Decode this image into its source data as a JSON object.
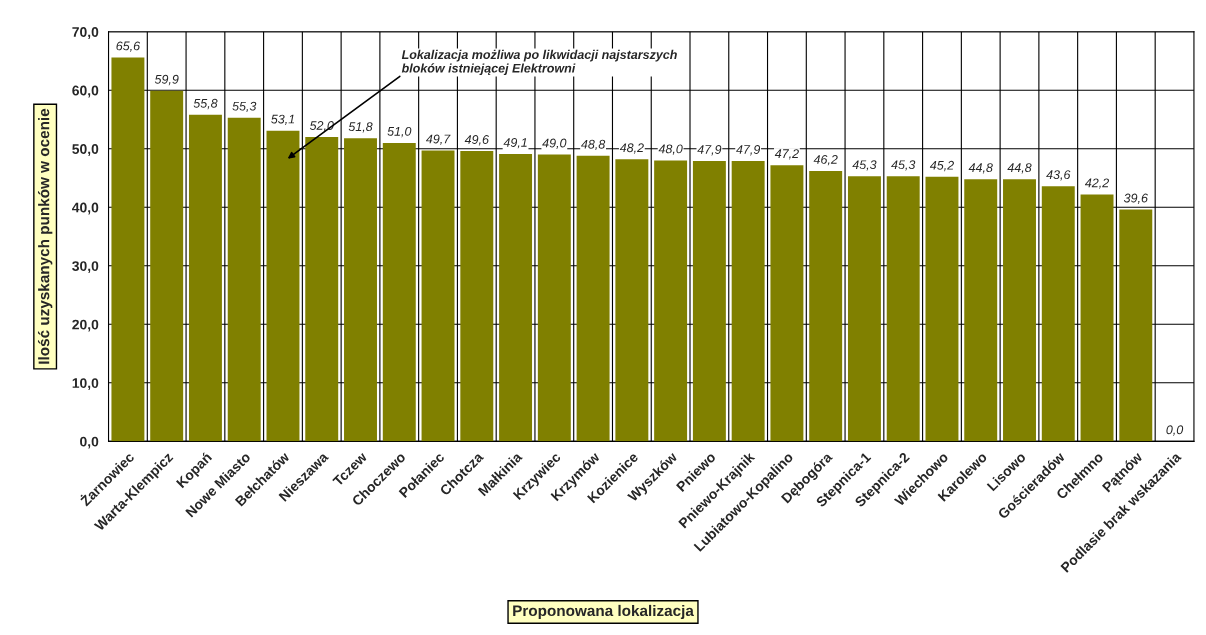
{
  "chart_data": {
    "type": "bar",
    "categories": [
      "Żarnowiec",
      "Warta-Klempicz",
      "Kopań",
      "Nowe Miasto",
      "Bełchatów",
      "Nieszawa",
      "Tczew",
      "Choczewo",
      "Połaniec",
      "Chotcza",
      "Małkinia",
      "Krzywiec",
      "Krzymów",
      "Kozienice",
      "Wyszków",
      "Pniewo",
      "Pniewo-Krajnik",
      "Lubiatowo-Kopalino",
      "Dębogóra",
      "Stepnica-1",
      "Stepnica-2",
      "Wiechowo",
      "Karolewo",
      "Lisowo",
      "Gościeradów",
      "Chełmno",
      "Pątnów",
      "Podlasie brak wskazania"
    ],
    "values": [
      65.6,
      59.9,
      55.8,
      55.3,
      53.1,
      52.0,
      51.8,
      51.0,
      49.7,
      49.6,
      49.1,
      49.0,
      48.8,
      48.2,
      48.0,
      47.9,
      47.9,
      47.2,
      46.2,
      45.3,
      45.3,
      45.2,
      44.8,
      44.8,
      43.6,
      42.2,
      39.6,
      0.0
    ],
    "value_labels": [
      "65,6",
      "59,9",
      "55,8",
      "55,3",
      "53,1",
      "52,0",
      "51,8",
      "51,0",
      "49,7",
      "49,6",
      "49,1",
      "49,0",
      "48,8",
      "48,2",
      "48,0",
      "47,9",
      "47,9",
      "47,2",
      "46,2",
      "45,3",
      "45,3",
      "45,2",
      "44,8",
      "44,8",
      "43,6",
      "42,2",
      "39,6",
      "0,0"
    ],
    "color": "#808000",
    "xlabel": "Proponowana lokalizacja",
    "ylabel": "Ilość uzyskanych punków w ocenie",
    "ylim": [
      0,
      70
    ],
    "yticks": [
      {
        "value": 0,
        "label": "0,0"
      },
      {
        "value": 10,
        "label": "10,0"
      },
      {
        "value": 20,
        "label": "20,0"
      },
      {
        "value": 30,
        "label": "30,0"
      },
      {
        "value": 40,
        "label": "40,0"
      },
      {
        "value": 50,
        "label": "50,0"
      },
      {
        "value": 60,
        "label": "60,0"
      },
      {
        "value": 70,
        "label": "70,0"
      }
    ],
    "grid": true,
    "annotations": [
      "Lokalizacja możliwa po likwidacji najstarszych\nbloków istniejącej Elektrowni"
    ]
  }
}
